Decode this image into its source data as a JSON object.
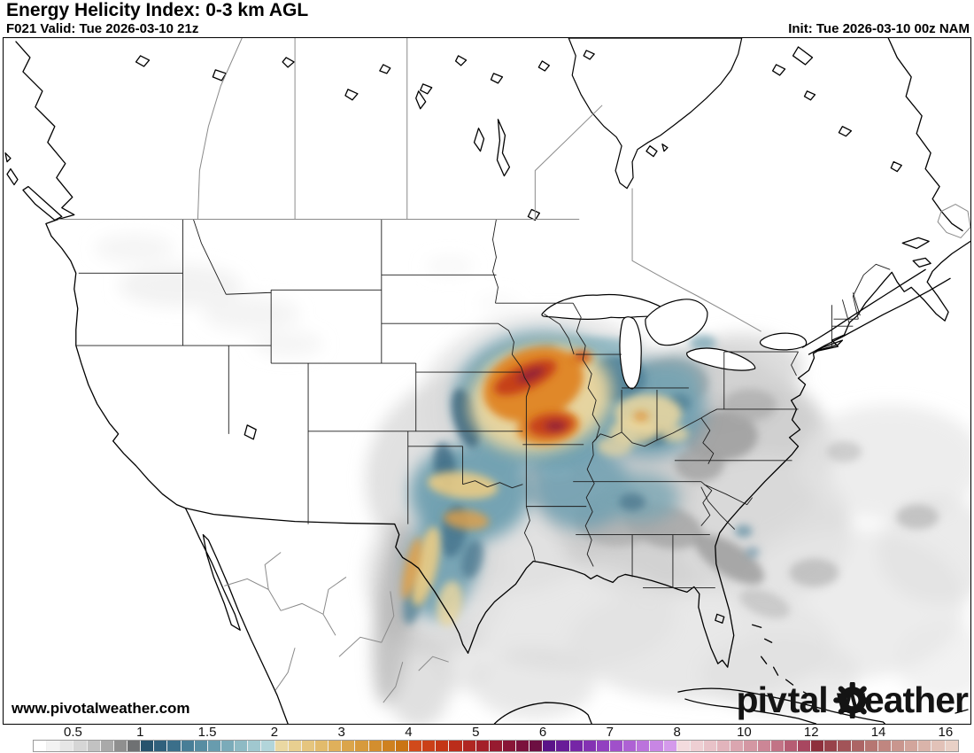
{
  "header": {
    "title": "Energy Helicity Index: 0-3 km AGL",
    "valid": "F021 Valid: Tue 2026-03-10 21z",
    "init": "Init: Tue 2026-03-10 00z NAM"
  },
  "branding": {
    "url": "www.pivotalweather.com",
    "watermark_part1": "piv",
    "watermark_part2": "tal weather"
  },
  "colorbar": {
    "tick_labels": [
      "0.5",
      "1",
      "1.5",
      "2",
      "3",
      "4",
      "5",
      "6",
      "7",
      "8",
      "10",
      "12",
      "14",
      "16"
    ],
    "tick_cells": [
      3,
      8,
      13,
      18,
      23,
      28,
      33,
      38,
      43,
      48,
      53,
      58,
      63,
      68
    ],
    "total_cells": 69,
    "cell_colors": [
      "#ffffff",
      "#f3f3f3",
      "#e6e6e6",
      "#d6d6d6",
      "#c2c2c2",
      "#a9a9a9",
      "#8f8f8f",
      "#6f7173",
      "#27536d",
      "#30607c",
      "#3b6f8a",
      "#487e97",
      "#578da2",
      "#689cae",
      "#7babb9",
      "#8ebac4",
      "#a0c8cf",
      "#b2d5da",
      "#ead8a2",
      "#e8cf90",
      "#e5c57e",
      "#e2bb6c",
      "#dfb05b",
      "#dba54b",
      "#d79a3c",
      "#d38e2e",
      "#cf8120",
      "#ca7413",
      "#d14a1b",
      "#cb4018",
      "#c43616",
      "#bb2d1b",
      "#b02622",
      "#a42029",
      "#971b30",
      "#891637",
      "#7b123d",
      "#6d0f42",
      "#5b1489",
      "#681c98",
      "#7626a6",
      "#8432b3",
      "#9240c0",
      "#a050ca",
      "#ae61d4",
      "#bb73dc",
      "#c886e4",
      "#d49aeb",
      "#f3dbde",
      "#eecfd3",
      "#e8c2c8",
      "#e2b4bc",
      "#dba6b0",
      "#d497a3",
      "#cc8696",
      "#c27386",
      "#b65c73",
      "#a84760",
      "#8e303c",
      "#98424a",
      "#a25458",
      "#ac6565",
      "#b67672",
      "#c08680",
      "#c9968e",
      "#d2a59c",
      "#dab4aa",
      "#e2c2b8",
      "#e9d0c6"
    ]
  }
}
